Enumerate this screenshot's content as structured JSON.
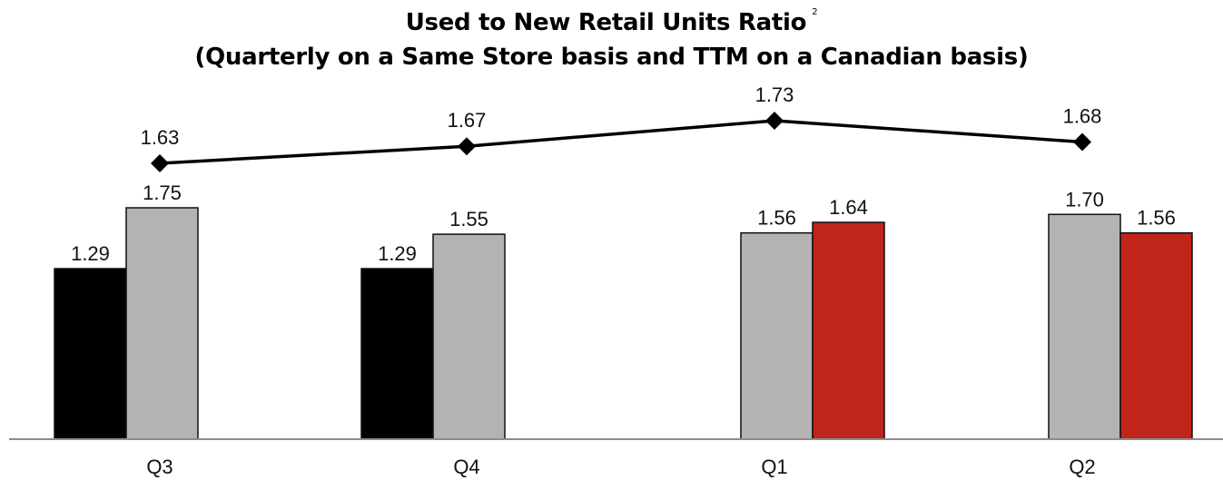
{
  "chart_data": {
    "type": "bar",
    "title": "Used to New Retail Units Ratio",
    "title_superscript": "2",
    "subtitle": "(Quarterly on a Same Store basis and TTM on a Canadian basis)",
    "categories": [
      "Q3",
      "Q4",
      "Q1",
      "Q2"
    ],
    "bar_series": [
      {
        "color": "#000000",
        "values": [
          1.29,
          1.29,
          null,
          null
        ]
      },
      {
        "color": "#b3b3b3",
        "values": [
          1.75,
          1.55,
          1.56,
          1.7
        ]
      },
      {
        "color": "#c0241a",
        "values": [
          null,
          null,
          1.64,
          1.56
        ]
      }
    ],
    "line_series": {
      "color": "#000000",
      "marker": "diamond",
      "values": [
        1.63,
        1.67,
        1.73,
        1.68
      ]
    },
    "ylim": [
      0,
      2.5
    ],
    "grid": false,
    "legend": "none"
  }
}
